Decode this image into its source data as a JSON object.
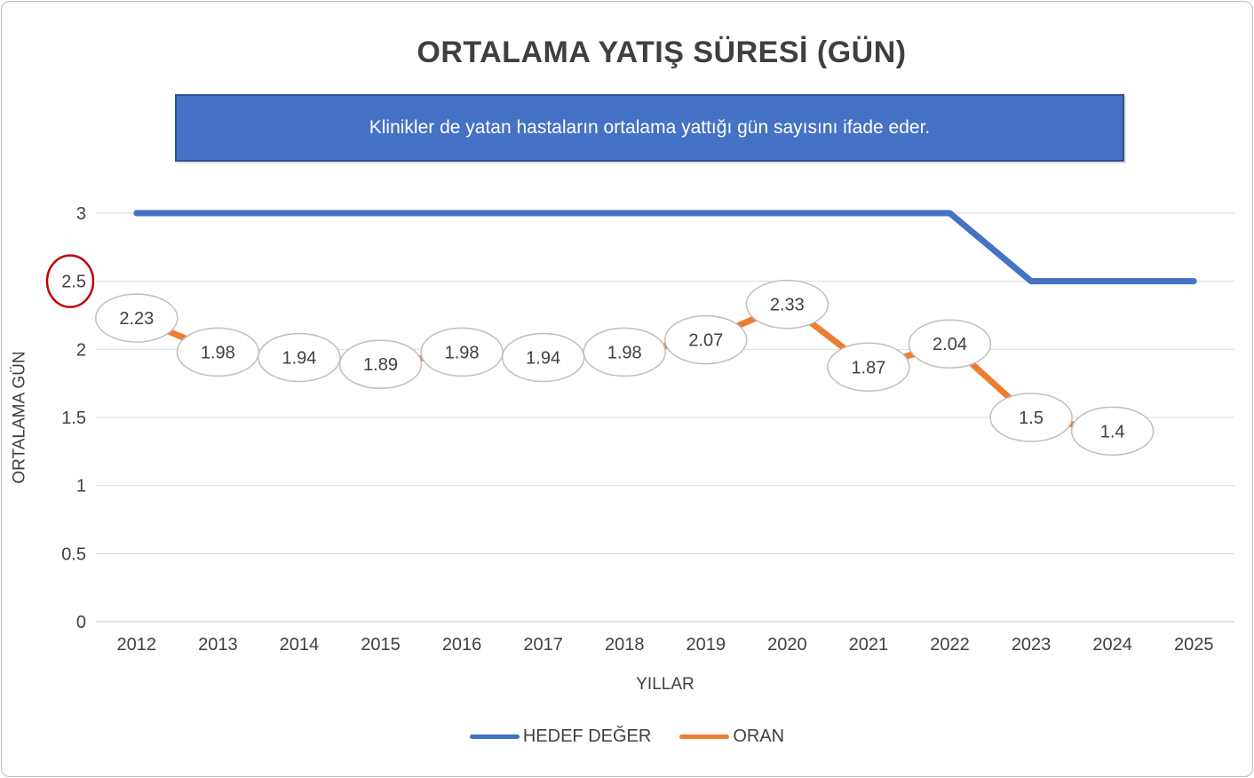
{
  "chart": {
    "title": "ORTALAMA YATIŞ SÜRESİ (GÜN)",
    "subtitle": "Klinikler de yatan hastaların ortalama yattığı gün sayısını ifade eder.",
    "ylabel": "ORTALAMA GÜN",
    "xlabel": "YILLAR",
    "box_fill": "#4472C4",
    "box_border": "#2F528F"
  },
  "chart_data": {
    "type": "line",
    "title": "ORTALAMA YATIŞ SÜRESİ (GÜN)",
    "subtitle": "Klinikler de yatan hastaların ortalama yattığı gün sayısını ifade eder.",
    "xlabel": "YILLAR",
    "ylabel": "ORTALAMA GÜN",
    "categories": [
      "2012",
      "2013",
      "2014",
      "2015",
      "2016",
      "2017",
      "2018",
      "2019",
      "2020",
      "2021",
      "2022",
      "2023",
      "2024",
      "2025"
    ],
    "series": [
      {
        "name": "HEDEF DEĞER",
        "color": "#4472C4",
        "values": [
          3,
          3,
          3,
          3,
          3,
          3,
          3,
          3,
          3,
          3,
          3,
          2.5,
          2.5,
          2.5
        ],
        "data_labels": false
      },
      {
        "name": "ORAN",
        "color": "#ED7D31",
        "values": [
          2.23,
          1.98,
          1.94,
          1.89,
          1.98,
          1.94,
          1.98,
          2.07,
          2.33,
          1.87,
          2.04,
          1.5,
          1.4,
          null
        ],
        "labels": [
          "2.23",
          "1.98",
          "1.94",
          "1.89",
          "1.98",
          "1.94",
          "1.98",
          "2.07",
          "2.33",
          "1.87",
          "2.04",
          "1.5",
          "1.4",
          null
        ],
        "data_labels": true
      }
    ],
    "ylim": [
      0,
      3
    ],
    "yticks": [
      "0",
      "0.5",
      "1",
      "1.5",
      "2",
      "2.5",
      "3"
    ],
    "grid": true,
    "legend_position": "bottom",
    "annotations": [
      {
        "type": "ellipse-around-y-tick",
        "value": 2.5,
        "color": "#C00000"
      }
    ]
  }
}
